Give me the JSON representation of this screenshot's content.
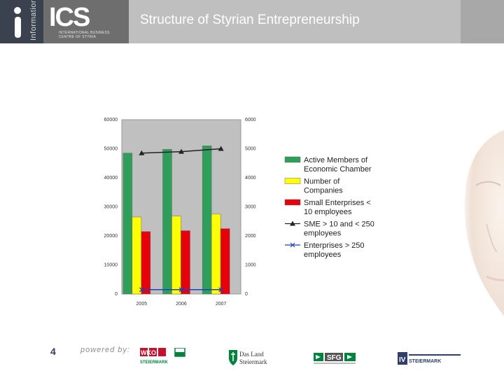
{
  "header": {
    "side_label": "Information",
    "logo_text": "ICS",
    "logo_line1": "INTERNATIONAL BUSINESS",
    "logo_line2": "CENTRE OF STYRIA",
    "title": "Structure of Styrian Entrepreneurship"
  },
  "footer": {
    "page_number": "4",
    "powered_by": "powered by:",
    "logos": [
      {
        "name": "wko",
        "text_main": "WKO",
        "text_sub": "STEIERMARK",
        "color": "#c8102e"
      },
      {
        "name": "das-land",
        "text_main": "Das Land",
        "text_sub": "Steiermark",
        "color": "#00843d"
      },
      {
        "name": "sfg",
        "text_main": "SFG",
        "color": "#00843d"
      },
      {
        "name": "iv",
        "text_main": "IV",
        "text_sub": "STEIERMARK",
        "color": "#2f3e6e"
      }
    ]
  },
  "chart_data": {
    "type": "bar",
    "categories": [
      "2005",
      "2006",
      "2007"
    ],
    "y_left": {
      "min": 0,
      "max": 60000,
      "ticks": [
        "0",
        "10000",
        "20000",
        "30000",
        "40000",
        "50000",
        "60000"
      ]
    },
    "y_right": {
      "min": 0,
      "max": 6000,
      "ticks": [
        "0",
        "1000",
        "2000",
        "3000",
        "4000",
        "5000",
        "6000"
      ]
    },
    "series": [
      {
        "name": "Active Members of Economic Chamber",
        "kind": "bar",
        "axis": "left",
        "color": "#2e9e5b",
        "values": [
          48500,
          49800,
          51000
        ]
      },
      {
        "name": "Number of Companies",
        "kind": "bar",
        "axis": "left",
        "color": "#ffff00",
        "values": [
          26500,
          26800,
          27500
        ]
      },
      {
        "name": "Small Enterprises < 10 employees",
        "kind": "bar",
        "axis": "left",
        "color": "#e8000b",
        "values": [
          21500,
          21800,
          22500
        ]
      },
      {
        "name": "SME > 10 and < 250 employees",
        "kind": "line",
        "axis": "right",
        "marker": "triangle",
        "color": "#222222",
        "values": [
          4850,
          4900,
          5000
        ]
      },
      {
        "name": "Enterprises > 250 employees",
        "kind": "line",
        "axis": "right",
        "marker": "x",
        "color": "#1f3fbf",
        "values": [
          150,
          150,
          150
        ]
      }
    ],
    "legend_lines": [
      [
        "Active Members of",
        "Economic Chamber"
      ],
      [
        "Number of",
        "Companies"
      ],
      [
        "Small Enterprises <",
        "10 employees"
      ],
      [
        "SME > 10 and < 250",
        "employees"
      ],
      [
        "Enterprises > 250",
        "employees"
      ]
    ],
    "plot_background": "#c0c0c0",
    "grid": false,
    "legend_position": "right"
  }
}
